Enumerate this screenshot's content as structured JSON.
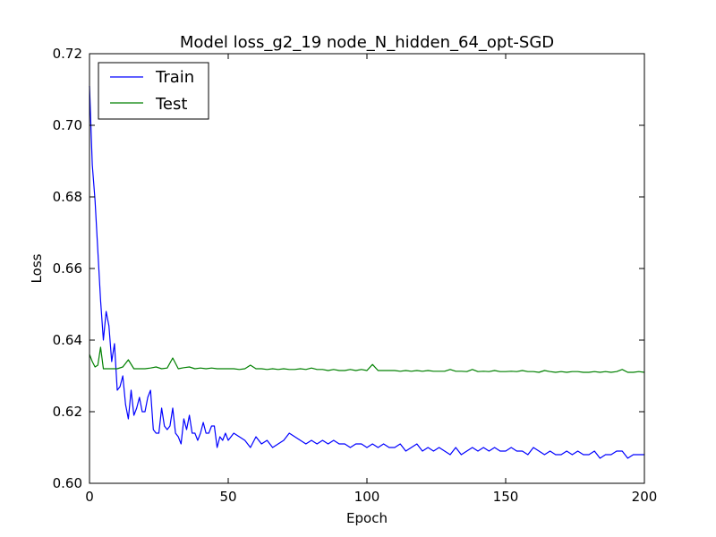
{
  "chart_data": {
    "type": "line",
    "title": "Model loss_g2_19 node_N_hidden_64_opt-SGD",
    "xlabel": "Epoch",
    "ylabel": "Loss",
    "xlim": [
      0,
      200
    ],
    "ylim": [
      0.6,
      0.72
    ],
    "xticks": [
      "0",
      "50",
      "100",
      "150",
      "200"
    ],
    "yticks": [
      "0.60",
      "0.62",
      "0.64",
      "0.66",
      "0.68",
      "0.70",
      "0.72"
    ],
    "grid": false,
    "legend_position": "top-left",
    "series": [
      {
        "name": "Train",
        "color": "#0000ff",
        "x": [
          0,
          1,
          2,
          3,
          4,
          5,
          6,
          7,
          8,
          9,
          10,
          11,
          12,
          13,
          14,
          15,
          16,
          17,
          18,
          19,
          20,
          21,
          22,
          23,
          24,
          25,
          26,
          27,
          28,
          29,
          30,
          31,
          32,
          33,
          34,
          35,
          36,
          37,
          38,
          39,
          40,
          41,
          42,
          43,
          44,
          45,
          46,
          47,
          48,
          49,
          50,
          52,
          54,
          56,
          58,
          60,
          62,
          64,
          66,
          68,
          70,
          72,
          74,
          76,
          78,
          80,
          82,
          84,
          86,
          88,
          90,
          92,
          94,
          96,
          98,
          100,
          102,
          104,
          106,
          108,
          110,
          112,
          114,
          116,
          118,
          120,
          122,
          124,
          126,
          128,
          130,
          132,
          134,
          136,
          138,
          140,
          142,
          144,
          146,
          148,
          150,
          152,
          154,
          156,
          158,
          160,
          162,
          164,
          166,
          168,
          170,
          172,
          174,
          176,
          178,
          180,
          182,
          184,
          186,
          188,
          190,
          192,
          194,
          196,
          198,
          200
        ],
        "y": [
          0.711,
          0.689,
          0.679,
          0.665,
          0.651,
          0.64,
          0.648,
          0.644,
          0.634,
          0.639,
          0.626,
          0.627,
          0.63,
          0.622,
          0.618,
          0.626,
          0.619,
          0.621,
          0.624,
          0.62,
          0.62,
          0.624,
          0.626,
          0.615,
          0.614,
          0.614,
          0.621,
          0.616,
          0.615,
          0.616,
          0.621,
          0.614,
          0.613,
          0.611,
          0.618,
          0.615,
          0.619,
          0.614,
          0.614,
          0.612,
          0.614,
          0.617,
          0.614,
          0.614,
          0.616,
          0.616,
          0.61,
          0.613,
          0.612,
          0.614,
          0.612,
          0.614,
          0.613,
          0.612,
          0.61,
          0.613,
          0.611,
          0.612,
          0.61,
          0.611,
          0.612,
          0.614,
          0.613,
          0.612,
          0.611,
          0.612,
          0.611,
          0.612,
          0.611,
          0.612,
          0.611,
          0.611,
          0.61,
          0.611,
          0.611,
          0.61,
          0.611,
          0.61,
          0.611,
          0.61,
          0.61,
          0.611,
          0.609,
          0.61,
          0.611,
          0.609,
          0.61,
          0.609,
          0.61,
          0.609,
          0.608,
          0.61,
          0.608,
          0.609,
          0.61,
          0.609,
          0.61,
          0.609,
          0.61,
          0.609,
          0.609,
          0.61,
          0.609,
          0.609,
          0.608,
          0.61,
          0.609,
          0.608,
          0.609,
          0.608,
          0.608,
          0.609,
          0.608,
          0.609,
          0.608,
          0.608,
          0.609,
          0.607,
          0.608,
          0.608,
          0.609,
          0.609,
          0.607,
          0.608,
          0.608,
          0.608
        ]
      },
      {
        "name": "Test",
        "color": "#008000",
        "x": [
          0,
          1,
          2,
          3,
          4,
          5,
          6,
          8,
          10,
          12,
          14,
          16,
          18,
          20,
          22,
          24,
          26,
          28,
          30,
          32,
          34,
          36,
          38,
          40,
          42,
          44,
          46,
          48,
          50,
          52,
          54,
          56,
          58,
          60,
          62,
          64,
          66,
          68,
          70,
          72,
          74,
          76,
          78,
          80,
          82,
          84,
          86,
          88,
          90,
          92,
          94,
          96,
          98,
          100,
          102,
          104,
          106,
          108,
          110,
          112,
          114,
          116,
          118,
          120,
          122,
          124,
          126,
          128,
          130,
          132,
          134,
          136,
          138,
          140,
          142,
          144,
          146,
          148,
          150,
          152,
          154,
          156,
          158,
          160,
          162,
          164,
          166,
          168,
          170,
          172,
          174,
          176,
          178,
          180,
          182,
          184,
          186,
          188,
          190,
          192,
          194,
          196,
          198,
          200
        ],
        "y": [
          0.636,
          0.634,
          0.6325,
          0.633,
          0.638,
          0.632,
          0.632,
          0.632,
          0.632,
          0.6325,
          0.6345,
          0.632,
          0.632,
          0.632,
          0.6322,
          0.6325,
          0.632,
          0.6322,
          0.635,
          0.632,
          0.6323,
          0.6325,
          0.632,
          0.6322,
          0.632,
          0.6322,
          0.632,
          0.632,
          0.632,
          0.632,
          0.6318,
          0.632,
          0.633,
          0.632,
          0.632,
          0.6318,
          0.632,
          0.6318,
          0.632,
          0.6318,
          0.6318,
          0.632,
          0.6318,
          0.6322,
          0.6318,
          0.6318,
          0.6315,
          0.6318,
          0.6315,
          0.6315,
          0.6318,
          0.6315,
          0.6318,
          0.6315,
          0.6332,
          0.6315,
          0.6315,
          0.6315,
          0.6315,
          0.6313,
          0.6315,
          0.6313,
          0.6315,
          0.6313,
          0.6315,
          0.6313,
          0.6313,
          0.6313,
          0.6318,
          0.6313,
          0.6313,
          0.6312,
          0.6318,
          0.6312,
          0.6313,
          0.6312,
          0.6315,
          0.6312,
          0.6312,
          0.6313,
          0.6312,
          0.6315,
          0.6312,
          0.6312,
          0.631,
          0.6315,
          0.6312,
          0.631,
          0.6312,
          0.631,
          0.6312,
          0.6312,
          0.631,
          0.631,
          0.6312,
          0.631,
          0.6312,
          0.631,
          0.6312,
          0.6318,
          0.631,
          0.631,
          0.6312,
          0.631
        ]
      }
    ]
  }
}
